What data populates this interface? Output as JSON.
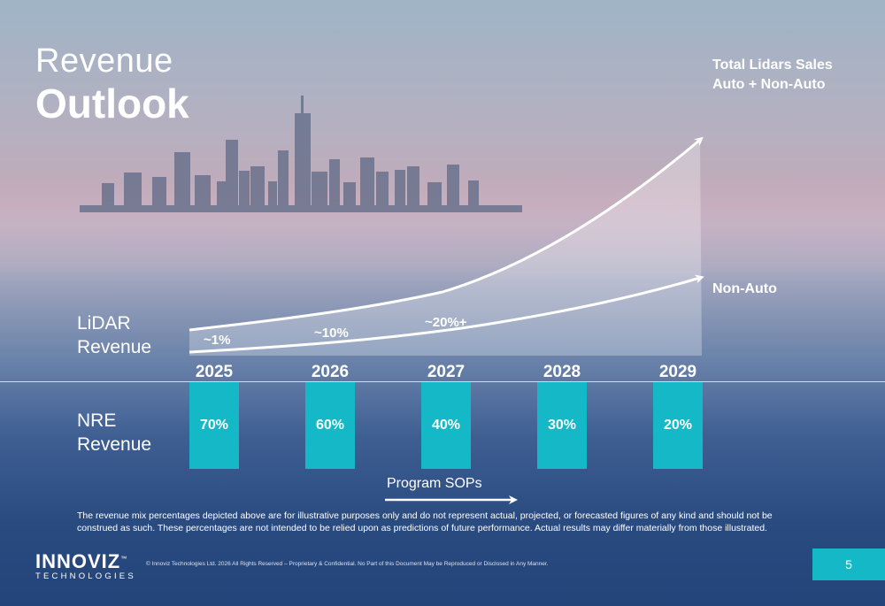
{
  "title": {
    "line1": "Revenue",
    "line2": "Outlook"
  },
  "chart_data": {
    "type": "area",
    "x": [
      "2025",
      "2026",
      "2027",
      "2028",
      "2029"
    ],
    "series": [
      {
        "name": "Total Lidars Sales Auto + Non-Auto",
        "label_lines": [
          "Total Lidars Sales",
          "Auto + Non-Auto"
        ],
        "trend": "exponential growth"
      },
      {
        "name": "Non-Auto",
        "label_lines": [
          "Non-Auto"
        ],
        "trend": "growth"
      }
    ],
    "lidar_share_annotations": [
      {
        "year": "2025",
        "label": "~1%"
      },
      {
        "year": "2026",
        "label": "~10%"
      },
      {
        "year": "2027",
        "label": "~20%+"
      }
    ],
    "nre_revenue": {
      "label_lines": [
        "NRE",
        "Revenue"
      ],
      "categories": [
        "2025",
        "2026",
        "2027",
        "2028",
        "2029"
      ],
      "values": [
        70,
        60,
        40,
        30,
        20
      ],
      "labels": [
        "70%",
        "60%",
        "40%",
        "30%",
        "20%"
      ],
      "color": "#14b8c6"
    },
    "lidar_revenue_label_lines": [
      "LiDAR",
      "Revenue"
    ],
    "arrow_label": "Program SOPs"
  },
  "disclaimer": "The revenue mix percentages depicted above are for illustrative purposes only and do not represent actual, projected, or forecasted figures of any kind and should not be construed as such. These percentages are not intended to be relied upon as predictions of future performance. Actual results may differ materially from those illustrated.",
  "footer": {
    "logo": "INNOVIZ",
    "logo_tm": "™",
    "logo_sub": "TECHNOLOGIES",
    "copyright": "© Innoviz Technologies Ltd. 2026 All Rights Reserved – Proprietary & Confidential. No Part of this Document May be Reproduced or Disclosed in Any Manner.",
    "page_number": "5"
  },
  "colors": {
    "accent": "#14b8c6",
    "text": "#ffffff"
  }
}
